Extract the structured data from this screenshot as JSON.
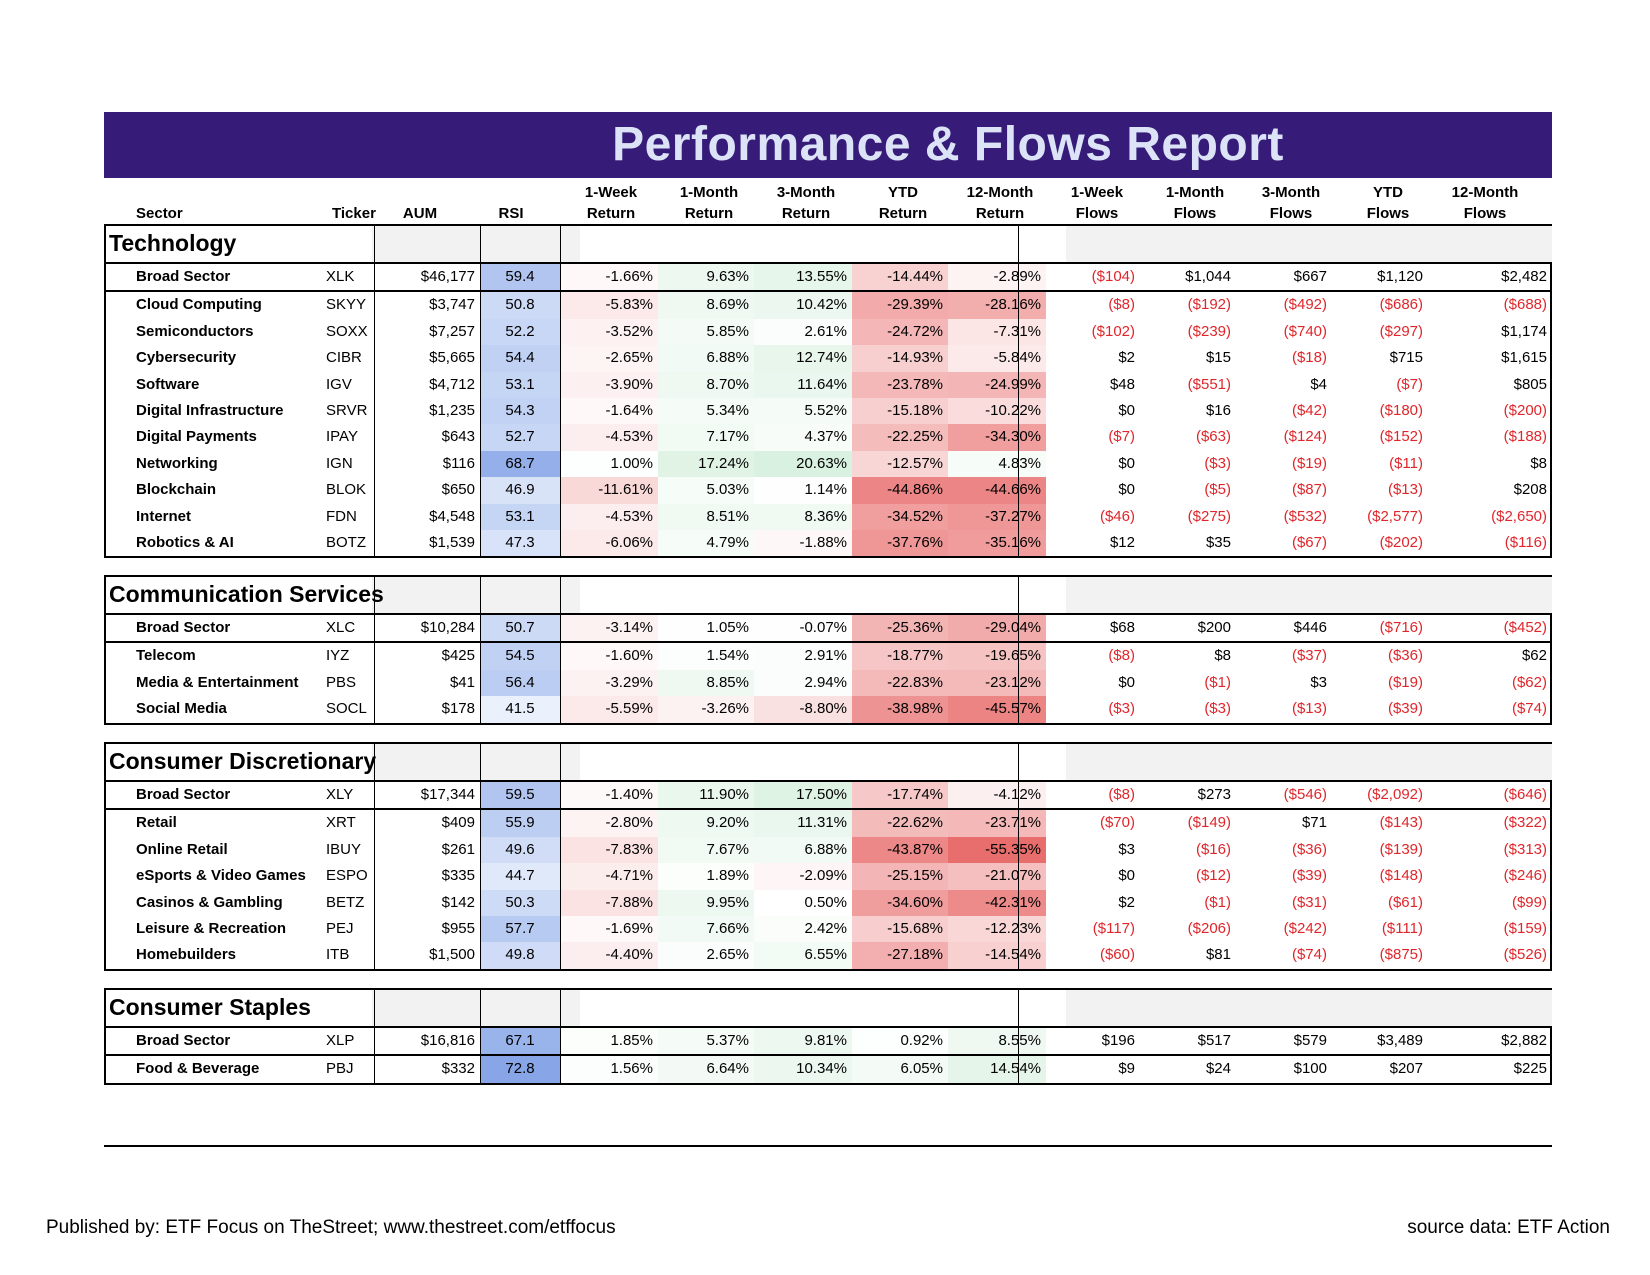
{
  "title": "Performance & Flows Report",
  "headers": [
    [
      "",
      "Sector"
    ],
    [
      "",
      "Ticker"
    ],
    [
      "",
      "AUM"
    ],
    [
      "",
      "RSI"
    ],
    [
      "1-Week",
      "Return"
    ],
    [
      "1-Month",
      "Return"
    ],
    [
      "3-Month",
      "Return"
    ],
    [
      "YTD",
      "Return"
    ],
    [
      "12-Month",
      "Return"
    ],
    [
      "1-Week",
      "Flows"
    ],
    [
      "1-Month",
      "Flows"
    ],
    [
      "3-Month",
      "Flows"
    ],
    [
      "YTD",
      "Flows"
    ],
    [
      "12-Month",
      "Flows"
    ]
  ],
  "sections": [
    {
      "name": "Technology",
      "rows": [
        [
          "Broad Sector",
          "XLK",
          "$46,177",
          "59.4",
          "-1.66%",
          "9.63%",
          "13.55%",
          "-14.44%",
          "-2.89%",
          "($104)",
          "$1,044",
          "$667",
          "$1,120",
          "$2,482"
        ],
        [
          "Cloud Computing",
          "SKYY",
          "$3,747",
          "50.8",
          "-5.83%",
          "8.69%",
          "10.42%",
          "-29.39%",
          "-28.16%",
          "($8)",
          "($192)",
          "($492)",
          "($686)",
          "($688)"
        ],
        [
          "Semiconductors",
          "SOXX",
          "$7,257",
          "52.2",
          "-3.52%",
          "5.85%",
          "2.61%",
          "-24.72%",
          "-7.31%",
          "($102)",
          "($239)",
          "($740)",
          "($297)",
          "$1,174"
        ],
        [
          "Cybersecurity",
          "CIBR",
          "$5,665",
          "54.4",
          "-2.65%",
          "6.88%",
          "12.74%",
          "-14.93%",
          "-5.84%",
          "$2",
          "$15",
          "($18)",
          "$715",
          "$1,615"
        ],
        [
          "Software",
          "IGV",
          "$4,712",
          "53.1",
          "-3.90%",
          "8.70%",
          "11.64%",
          "-23.78%",
          "-24.99%",
          "$48",
          "($551)",
          "$4",
          "($7)",
          "$805"
        ],
        [
          "Digital Infrastructure",
          "SRVR",
          "$1,235",
          "54.3",
          "-1.64%",
          "5.34%",
          "5.52%",
          "-15.18%",
          "-10.22%",
          "$0",
          "$16",
          "($42)",
          "($180)",
          "($200)"
        ],
        [
          "Digital Payments",
          "IPAY",
          "$643",
          "52.7",
          "-4.53%",
          "7.17%",
          "4.37%",
          "-22.25%",
          "-34.30%",
          "($7)",
          "($63)",
          "($124)",
          "($152)",
          "($188)"
        ],
        [
          "Networking",
          "IGN",
          "$116",
          "68.7",
          "1.00%",
          "17.24%",
          "20.63%",
          "-12.57%",
          "4.83%",
          "$0",
          "($3)",
          "($19)",
          "($11)",
          "$8"
        ],
        [
          "Blockchain",
          "BLOK",
          "$650",
          "46.9",
          "-11.61%",
          "5.03%",
          "1.14%",
          "-44.86%",
          "-44.66%",
          "$0",
          "($5)",
          "($87)",
          "($13)",
          "$208"
        ],
        [
          "Internet",
          "FDN",
          "$4,548",
          "53.1",
          "-4.53%",
          "8.51%",
          "8.36%",
          "-34.52%",
          "-37.27%",
          "($46)",
          "($275)",
          "($532)",
          "($2,577)",
          "($2,650)"
        ],
        [
          "Robotics & AI",
          "BOTZ",
          "$1,539",
          "47.3",
          "-6.06%",
          "4.79%",
          "-1.88%",
          "-37.76%",
          "-35.16%",
          "$12",
          "$35",
          "($67)",
          "($202)",
          "($116)"
        ]
      ]
    },
    {
      "name": "Communication Services",
      "rows": [
        [
          "Broad Sector",
          "XLC",
          "$10,284",
          "50.7",
          "-3.14%",
          "1.05%",
          "-0.07%",
          "-25.36%",
          "-29.04%",
          "$68",
          "$200",
          "$446",
          "($716)",
          "($452)"
        ],
        [
          "Telecom",
          "IYZ",
          "$425",
          "54.5",
          "-1.60%",
          "1.54%",
          "2.91%",
          "-18.77%",
          "-19.65%",
          "($8)",
          "$8",
          "($37)",
          "($36)",
          "$62"
        ],
        [
          "Media & Entertainment",
          "PBS",
          "$41",
          "56.4",
          "-3.29%",
          "8.85%",
          "2.94%",
          "-22.83%",
          "-23.12%",
          "$0",
          "($1)",
          "$3",
          "($19)",
          "($62)"
        ],
        [
          "Social Media",
          "SOCL",
          "$178",
          "41.5",
          "-5.59%",
          "-3.26%",
          "-8.80%",
          "-38.98%",
          "-45.57%",
          "($3)",
          "($3)",
          "($13)",
          "($39)",
          "($74)"
        ]
      ]
    },
    {
      "name": "Consumer Discretionary",
      "rows": [
        [
          "Broad Sector",
          "XLY",
          "$17,344",
          "59.5",
          "-1.40%",
          "11.90%",
          "17.50%",
          "-17.74%",
          "-4.12%",
          "($8)",
          "$273",
          "($546)",
          "($2,092)",
          "($646)"
        ],
        [
          "Retail",
          "XRT",
          "$409",
          "55.9",
          "-2.80%",
          "9.20%",
          "11.31%",
          "-22.62%",
          "-23.71%",
          "($70)",
          "($149)",
          "$71",
          "($143)",
          "($322)"
        ],
        [
          "Online Retail",
          "IBUY",
          "$261",
          "49.6",
          "-7.83%",
          "7.67%",
          "6.88%",
          "-43.87%",
          "-55.35%",
          "$3",
          "($16)",
          "($36)",
          "($139)",
          "($313)"
        ],
        [
          "eSports & Video Games",
          "ESPO",
          "$335",
          "44.7",
          "-4.71%",
          "1.89%",
          "-2.09%",
          "-25.15%",
          "-21.07%",
          "$0",
          "($12)",
          "($39)",
          "($148)",
          "($246)"
        ],
        [
          "Casinos & Gambling",
          "BETZ",
          "$142",
          "50.3",
          "-7.88%",
          "9.95%",
          "0.50%",
          "-34.60%",
          "-42.31%",
          "$2",
          "($1)",
          "($31)",
          "($61)",
          "($99)"
        ],
        [
          "Leisure & Recreation",
          "PEJ",
          "$955",
          "57.7",
          "-1.69%",
          "7.66%",
          "2.42%",
          "-15.68%",
          "-12.23%",
          "($117)",
          "($206)",
          "($242)",
          "($111)",
          "($159)"
        ],
        [
          "Homebuilders",
          "ITB",
          "$1,500",
          "49.8",
          "-4.40%",
          "2.65%",
          "6.55%",
          "-27.18%",
          "-14.54%",
          "($60)",
          "$81",
          "($74)",
          "($875)",
          "($526)"
        ]
      ]
    },
    {
      "name": "Consumer Staples",
      "rows": [
        [
          "Broad Sector",
          "XLP",
          "$16,816",
          "67.1",
          "1.85%",
          "5.37%",
          "9.81%",
          "0.92%",
          "8.55%",
          "$196",
          "$517",
          "$579",
          "$3,489",
          "$2,882"
        ],
        [
          "Food & Beverage",
          "PBJ",
          "$332",
          "72.8",
          "1.56%",
          "6.64%",
          "10.34%",
          "6.05%",
          "14.54%",
          "$9",
          "$24",
          "$100",
          "$207",
          "$225"
        ]
      ]
    }
  ],
  "footer": {
    "published": "Published by: ETF Focus on TheStreet; www.thestreet.com/etffocus",
    "source": "source data: ETF Action"
  }
}
